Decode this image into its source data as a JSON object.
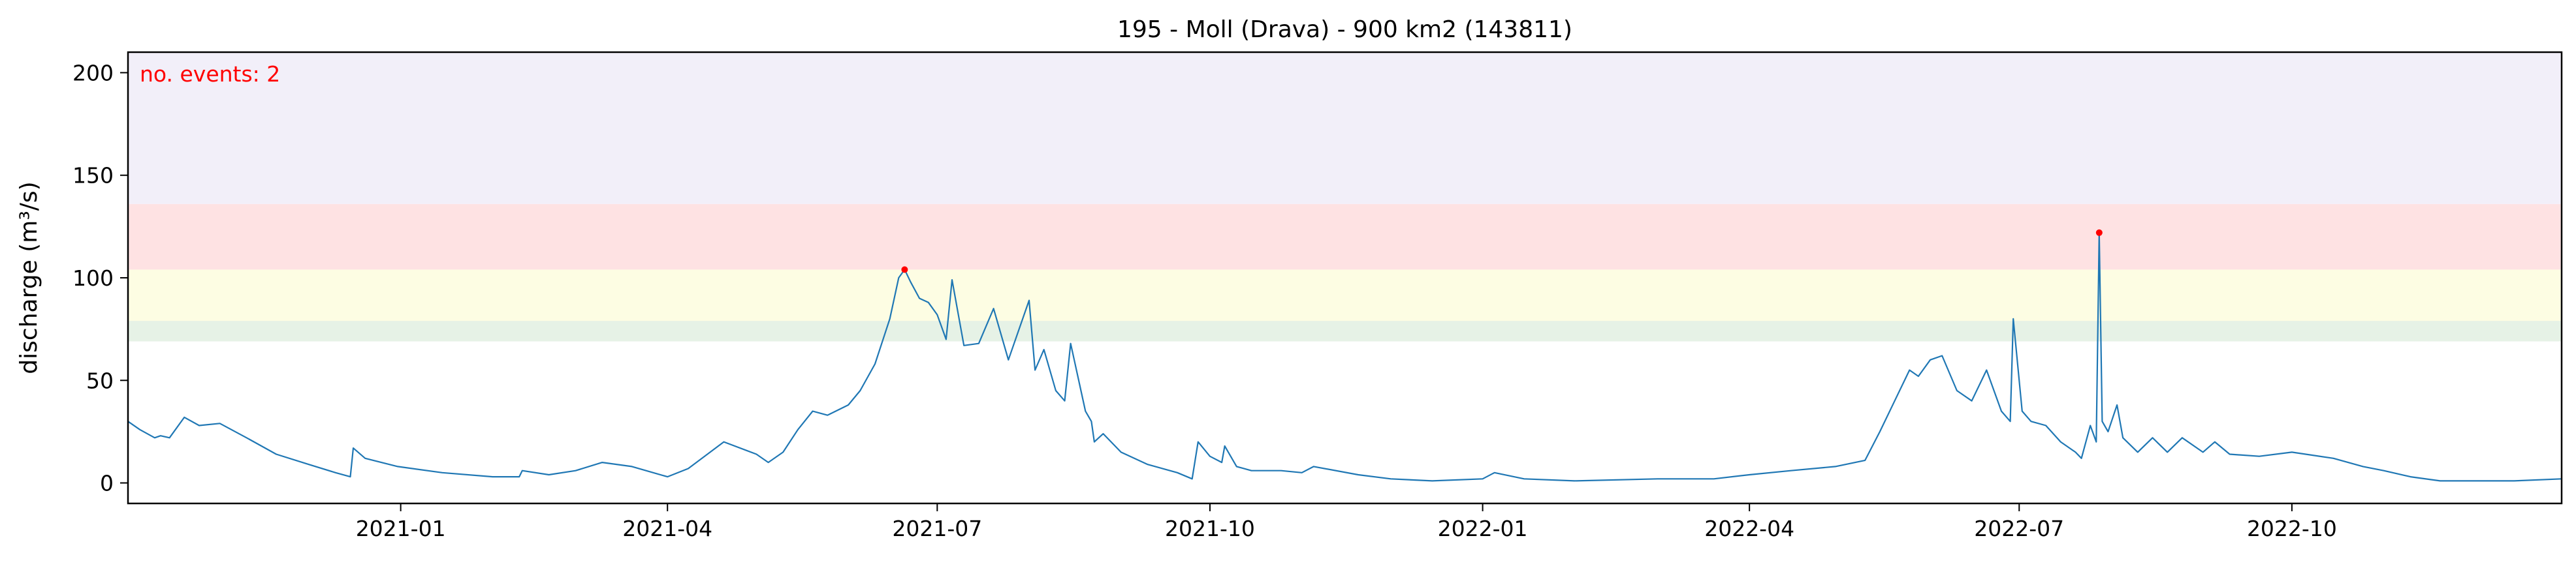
{
  "chart_data": {
    "type": "line",
    "title": "195 - Moll (Drava) - 900 km2 (143811)",
    "xlabel": "",
    "ylabel": "discharge (m³/s)",
    "ylim": [
      -10,
      210
    ],
    "xlim": [
      "2020-10-01",
      "2022-12-31"
    ],
    "grid": false,
    "x_ticks": [
      "2021-01",
      "2021-04",
      "2021-07",
      "2021-10",
      "2022-01",
      "2022-04",
      "2022-07",
      "2022-10"
    ],
    "y_ticks": [
      0,
      50,
      100,
      150,
      200
    ],
    "annotation": {
      "text": "no. events: 2",
      "color": "#ff0000"
    },
    "threshold_bands": [
      {
        "from": 69,
        "to": 79,
        "color": "#e6f2e6"
      },
      {
        "from": 79,
        "to": 104,
        "color": "#fdfde3"
      },
      {
        "from": 104,
        "to": 136,
        "color": "#fee2e3"
      },
      {
        "from": 136,
        "to": 210,
        "color": "#f2eff9"
      }
    ],
    "series": [
      {
        "color": "#1f77b4",
        "x": [
          "2020-10-01",
          "2020-10-05",
          "2020-10-10",
          "2020-10-12",
          "2020-10-15",
          "2020-10-20",
          "2020-10-25",
          "2020-11-01",
          "2020-11-10",
          "2020-11-20",
          "2020-12-01",
          "2020-12-10",
          "2020-12-15",
          "2020-12-16",
          "2020-12-20",
          "2020-12-31",
          "2021-01-15",
          "2021-02-01",
          "2021-02-10",
          "2021-02-11",
          "2021-02-20",
          "2021-03-01",
          "2021-03-10",
          "2021-03-20",
          "2021-04-01",
          "2021-04-08",
          "2021-04-20",
          "2021-05-01",
          "2021-05-05",
          "2021-05-10",
          "2021-05-15",
          "2021-05-20",
          "2021-05-25",
          "2021-06-01",
          "2021-06-05",
          "2021-06-10",
          "2021-06-15",
          "2021-06-18",
          "2021-06-20",
          "2021-06-22",
          "2021-06-25",
          "2021-06-28",
          "2021-07-01",
          "2021-07-04",
          "2021-07-06",
          "2021-07-10",
          "2021-07-15",
          "2021-07-20",
          "2021-07-25",
          "2021-08-01",
          "2021-08-03",
          "2021-08-06",
          "2021-08-10",
          "2021-08-13",
          "2021-08-15",
          "2021-08-20",
          "2021-08-22",
          "2021-08-23",
          "2021-08-26",
          "2021-09-01",
          "2021-09-10",
          "2021-09-20",
          "2021-09-25",
          "2021-09-27",
          "2021-10-01",
          "2021-10-05",
          "2021-10-06",
          "2021-10-10",
          "2021-10-15",
          "2021-10-25",
          "2021-11-01",
          "2021-11-05",
          "2021-11-20",
          "2021-12-01",
          "2021-12-15",
          "2022-01-01",
          "2022-01-05",
          "2022-01-15",
          "2022-02-01",
          "2022-03-01",
          "2022-03-20",
          "2022-04-01",
          "2022-04-15",
          "2022-04-30",
          "2022-05-10",
          "2022-05-15",
          "2022-05-20",
          "2022-05-25",
          "2022-05-28",
          "2022-06-01",
          "2022-06-05",
          "2022-06-10",
          "2022-06-15",
          "2022-06-20",
          "2022-06-25",
          "2022-06-28",
          "2022-06-29",
          "2022-07-02",
          "2022-07-05",
          "2022-07-10",
          "2022-07-15",
          "2022-07-20",
          "2022-07-22",
          "2022-07-25",
          "2022-07-27",
          "2022-07-28",
          "2022-07-29",
          "2022-07-31",
          "2022-08-03",
          "2022-08-05",
          "2022-08-10",
          "2022-08-15",
          "2022-08-20",
          "2022-08-25",
          "2022-09-01",
          "2022-09-05",
          "2022-09-10",
          "2022-09-20",
          "2022-10-01",
          "2022-10-15",
          "2022-10-25",
          "2022-11-01",
          "2022-11-10",
          "2022-11-20",
          "2022-12-01",
          "2022-12-15",
          "2022-12-31"
        ],
        "y": [
          30,
          26,
          22,
          23,
          22,
          32,
          28,
          29,
          22,
          14,
          9,
          5,
          3,
          17,
          12,
          8,
          5,
          3,
          3,
          6,
          4,
          6,
          10,
          8,
          3,
          7,
          20,
          14,
          10,
          15,
          26,
          35,
          33,
          38,
          45,
          58,
          80,
          100,
          104,
          98,
          90,
          88,
          82,
          70,
          99,
          67,
          68,
          85,
          60,
          89,
          55,
          65,
          45,
          40,
          68,
          35,
          30,
          20,
          24,
          15,
          9,
          5,
          2,
          20,
          13,
          10,
          18,
          8,
          6,
          6,
          5,
          8,
          4,
          2,
          1,
          2,
          5,
          2,
          1,
          2,
          2,
          4,
          6,
          8,
          11,
          25,
          40,
          55,
          52,
          60,
          62,
          45,
          40,
          55,
          35,
          30,
          80,
          35,
          30,
          28,
          20,
          15,
          12,
          28,
          20,
          122,
          30,
          25,
          38,
          22,
          15,
          22,
          15,
          22,
          15,
          20,
          14,
          13,
          15,
          12,
          8,
          6,
          3,
          1,
          1,
          1,
          2
        ]
      }
    ],
    "events": [
      {
        "x": "2021-06-20",
        "y": 104
      },
      {
        "x": "2022-07-28",
        "y": 122
      }
    ]
  }
}
